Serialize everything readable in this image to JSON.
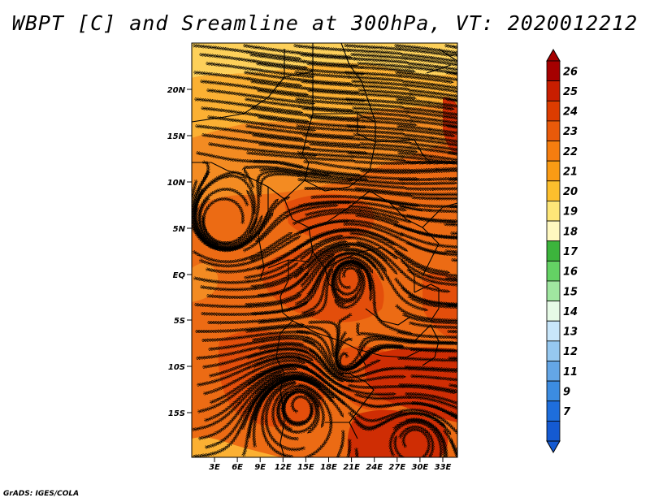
{
  "title": "WBPT [C] and Sreamline at 300hPa, VT: 2020012212",
  "footer": "GrADS: IGES/COLA",
  "lat_ticks": [
    "20N",
    "15N",
    "10N",
    "5N",
    "EQ",
    "5S",
    "10S",
    "15S"
  ],
  "lon_ticks": [
    "3E",
    "6E",
    "9E",
    "12E",
    "15E",
    "18E",
    "21E",
    "24E",
    "27E",
    "30E",
    "33E"
  ],
  "colorbar": {
    "levels": [
      "26",
      "25",
      "24",
      "23",
      "22",
      "21",
      "20",
      "19",
      "18",
      "17",
      "16",
      "15",
      "14",
      "13",
      "12",
      "11",
      "9",
      "7"
    ],
    "colors": [
      "#a50000",
      "#c81e00",
      "#dc3c00",
      "#e95a0a",
      "#f57d0f",
      "#fa9b14",
      "#fdbf2d",
      "#fee678",
      "#fff8c0",
      "#3cb43c",
      "#64d264",
      "#a0e6a0",
      "#e6fae6",
      "#c8e6fa",
      "#96c8f0",
      "#64a6e6",
      "#3c8ce1",
      "#1e6edc",
      "#145ad2"
    ]
  },
  "map": {
    "field_colors": {
      "yellow": "#fdd05a",
      "light_orange": "#fbb033",
      "orange": "#f38b22",
      "dark_orange": "#ec6b14",
      "red_orange": "#e34e0b",
      "red": "#cf2d04"
    }
  }
}
